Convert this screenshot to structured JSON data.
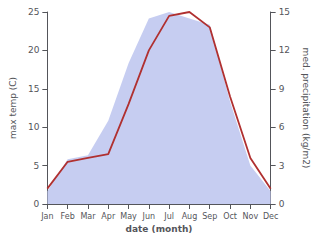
{
  "chart_data": {
    "type": "line",
    "xlabel": "date (month)",
    "ylabel": "max temp (C)",
    "y2label": "med. precipitation (kg/m2)",
    "categories": [
      "Jan",
      "Feb",
      "Mar",
      "Apr",
      "May",
      "Jun",
      "Jul",
      "Aug",
      "Sep",
      "Oct",
      "Nov",
      "Dec"
    ],
    "series": [
      {
        "type": "area",
        "color": "#c0c8f0",
        "axis": "y2",
        "values": [
          1,
          3.5,
          3.8,
          6.5,
          11,
          14.5,
          15,
          14.5,
          14,
          8,
          3,
          1
        ]
      },
      {
        "type": "line",
        "color": "#b03030",
        "values": [
          2,
          5.5,
          6.0,
          6.5,
          13,
          20,
          24.5,
          25,
          23,
          14,
          6,
          2
        ]
      }
    ],
    "ylim": [
      0,
      25
    ],
    "yticks": [
      0,
      5,
      10,
      15,
      20,
      25
    ],
    "y2lim": [
      0,
      15
    ],
    "y2ticks": [
      0,
      3,
      6,
      9,
      12,
      15
    ],
    "grid": false
  }
}
